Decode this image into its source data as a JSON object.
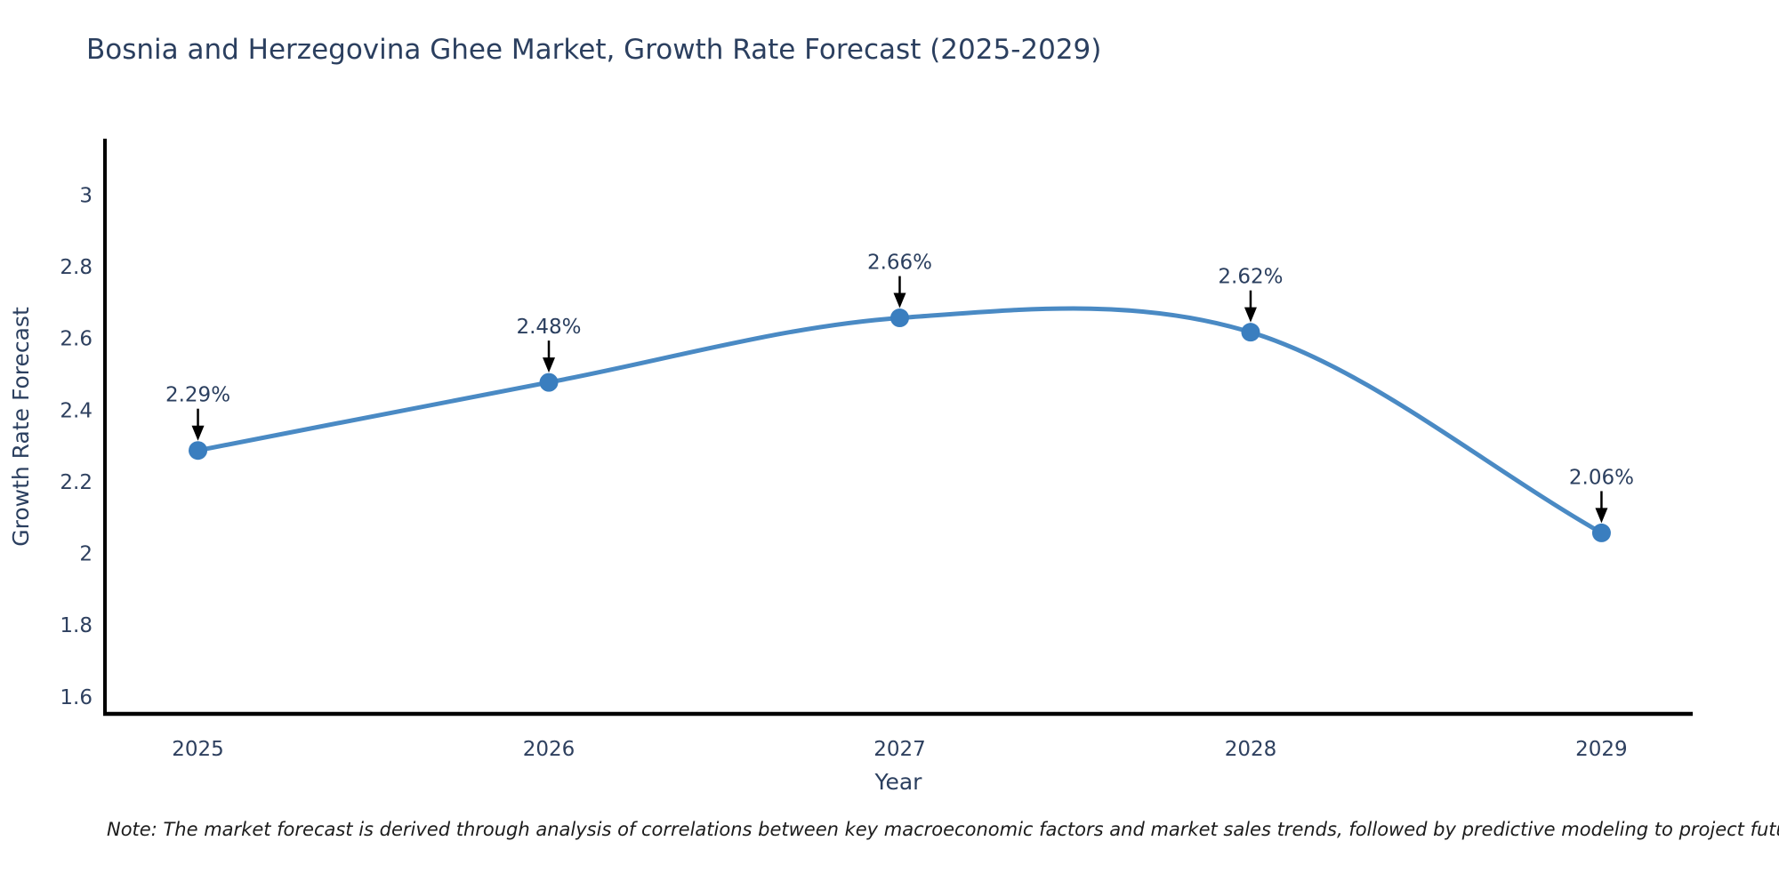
{
  "note": "Note: The market forecast is derived through analysis of correlations between key macroeconomic factors and market sales trends, followed by predictive modeling to project future sales",
  "chart_data": {
    "type": "line",
    "title": "Bosnia and Herzegovina Ghee Market, Growth Rate Forecast (2025-2029)",
    "xlabel": "Year",
    "ylabel": "Growth Rate Forecast",
    "x": [
      2025,
      2026,
      2027,
      2028,
      2029
    ],
    "values": [
      2.29,
      2.48,
      2.66,
      2.62,
      2.06
    ],
    "point_labels": [
      "2.29%",
      "2.48%",
      "2.66%",
      "2.62%",
      "2.06%"
    ],
    "xticks": [
      "2025",
      "2026",
      "2027",
      "2028",
      "2029"
    ],
    "yticks": [
      1.6,
      1.8,
      2,
      2.2,
      2.4,
      2.6,
      2.8,
      3
    ],
    "xlim": [
      2024.735,
      2029.26
    ],
    "ylim": [
      1.555,
      3.16
    ],
    "grid": false,
    "legend_position": "none",
    "curve": "smooth-spline",
    "annotation_style": "label-above-with-down-arrow",
    "colors": {
      "line": "#4a8ac4",
      "marker": "#3a7ebf",
      "axis": "#000000",
      "arrow": "#000000",
      "title_text": "#2b3f5f",
      "tick_text": "#2e405f",
      "note_text": "#1c1c1c",
      "background": "#ffffff"
    }
  }
}
